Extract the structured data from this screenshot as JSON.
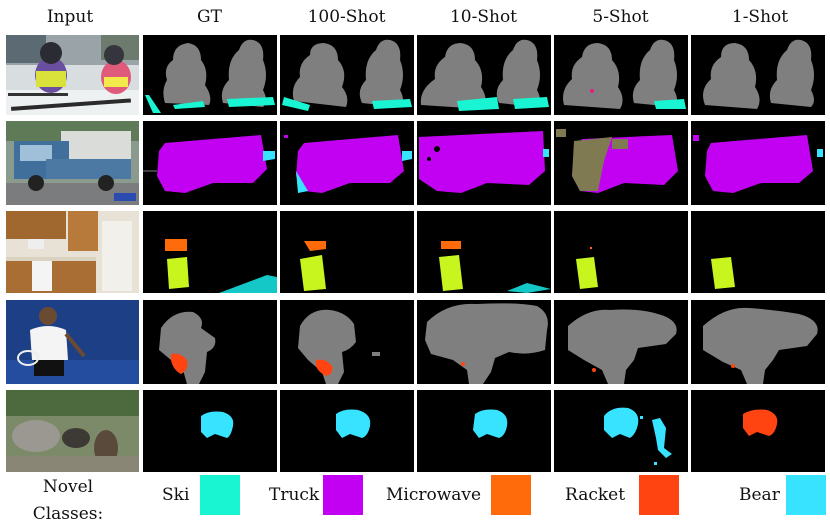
{
  "columns": [
    "Input",
    "GT",
    "100-Shot",
    "10-Shot",
    "5-Shot",
    "1-Shot"
  ],
  "legend": {
    "title_line1": "Novel",
    "title_line2": "Classes:",
    "classes": [
      {
        "name": "Ski",
        "color": "#19f5d2"
      },
      {
        "name": "Truck",
        "color": "#c200f2"
      },
      {
        "name": "Microwave",
        "color": "#ff6a0a"
      },
      {
        "name": "Racket",
        "color": "#ff4412"
      },
      {
        "name": "Bear",
        "color": "#38e3ff"
      }
    ]
  },
  "colors": {
    "person": "#7f7f7f",
    "ski": "#19f5d2",
    "truck": "#c200f2",
    "microwave": "#ff6a0a",
    "oven": "#c8f51e",
    "racket": "#ff4412",
    "bear": "#38e3ff",
    "background": "#000000",
    "olive": "#7f7a52"
  },
  "rows": [
    {
      "scene": "skiers",
      "input": "Two children sitting on skis in the snow"
    },
    {
      "scene": "truck",
      "input": "Blue truck parked on a street"
    },
    {
      "scene": "kitchen",
      "input": "Kitchen with wooden cabinets"
    },
    {
      "scene": "tennis",
      "input": "Tennis player holding a racket"
    },
    {
      "scene": "bear",
      "input": "Bears in a rocky forest"
    }
  ]
}
